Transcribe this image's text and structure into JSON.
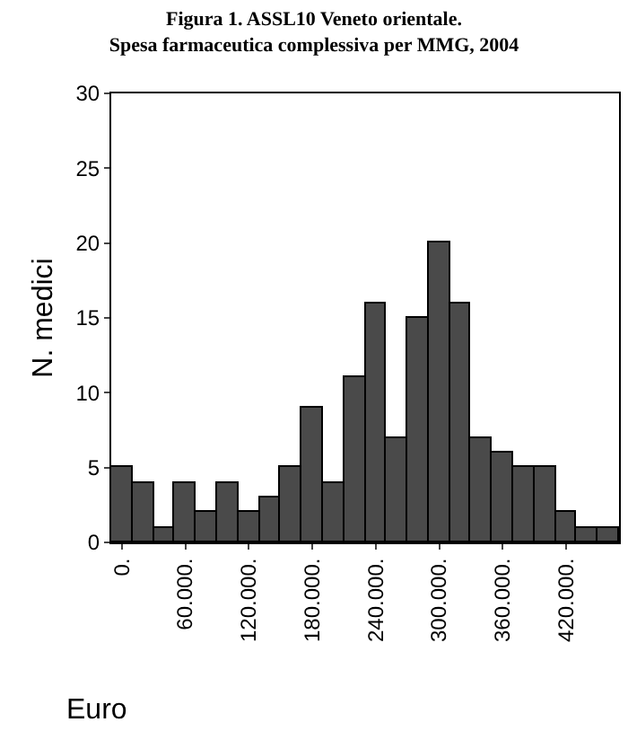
{
  "chart_data": {
    "type": "histogram",
    "title": "Figura 1. ASSL10 Veneto orientale.\nSpesa farmaceutica complessiva per MMG, 2004",
    "bins": [
      -10000,
      10000,
      30000,
      50000,
      70000,
      90000,
      110000,
      130000,
      150000,
      170000,
      190000,
      210000,
      230000,
      250000,
      270000,
      290000,
      310000,
      330000,
      350000,
      370000,
      390000,
      410000,
      430000,
      450000,
      470000
    ],
    "values": [
      5,
      4,
      1,
      4,
      2,
      4,
      2,
      3,
      5,
      9,
      4,
      11,
      16,
      7,
      15,
      20,
      16,
      7,
      6,
      5,
      5,
      2,
      1,
      1
    ],
    "color": "#4a4a4a",
    "xlim": [
      -10000,
      470000
    ],
    "xticks": [
      {
        "value": 0,
        "label": "0."
      },
      {
        "value": 60000,
        "label": "60.000."
      },
      {
        "value": 120000,
        "label": "120.000."
      },
      {
        "value": 180000,
        "label": "180.000."
      },
      {
        "value": 240000,
        "label": "240.000."
      },
      {
        "value": 300000,
        "label": "300.000."
      },
      {
        "value": 360000,
        "label": "360.000."
      },
      {
        "value": 420000,
        "label": "420.000."
      }
    ],
    "ylim": [
      0,
      30
    ],
    "yticks": [
      0,
      5,
      10,
      15,
      20,
      25,
      30
    ],
    "xlabel": "Euro",
    "ylabel": "N. medici",
    "grid": false
  }
}
